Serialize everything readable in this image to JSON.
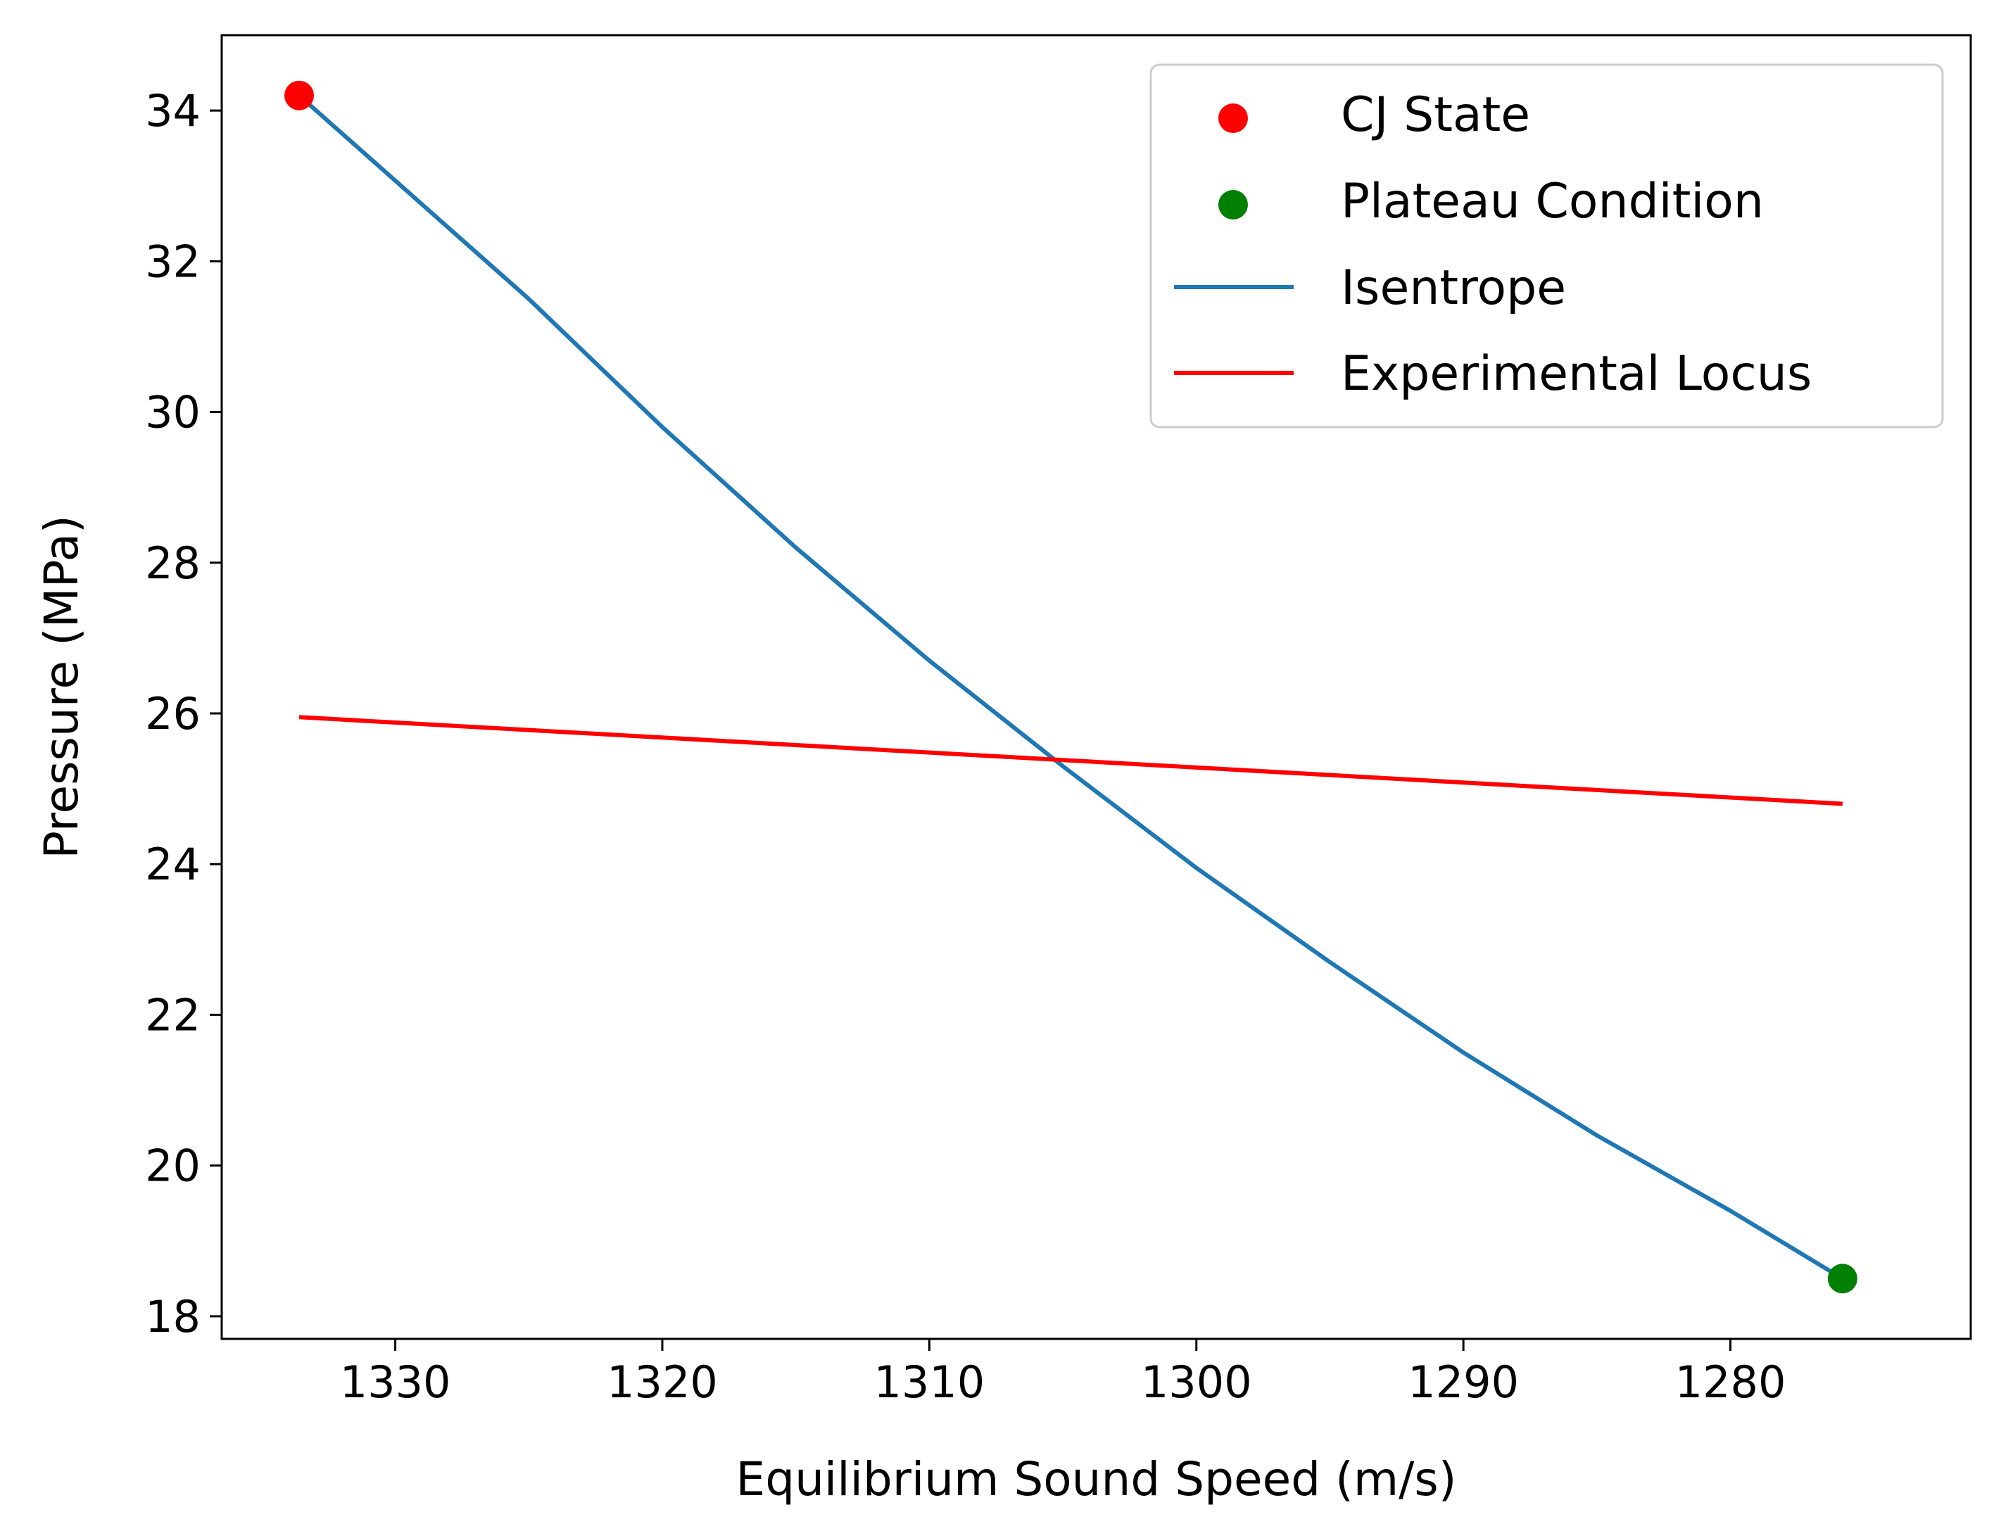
{
  "chart_data": {
    "type": "line",
    "xlabel": "Equilibrium Sound Speed (m/s)",
    "ylabel": "Pressure (MPa)",
    "x_inverted": true,
    "xlim": [
      1336.5,
      1271.0
    ],
    "ylim": [
      17.7,
      35.0
    ],
    "x_ticks": [
      1330,
      1320,
      1310,
      1300,
      1290,
      1280
    ],
    "y_ticks": [
      18,
      20,
      22,
      24,
      26,
      28,
      30,
      32,
      34
    ],
    "grid": false,
    "legend_position": "top-right",
    "colors": {
      "isentrope": "#1f77b4",
      "locus": "#ff0000",
      "cj": "#ff0000",
      "plateau": "#008000"
    },
    "series": [
      {
        "name": "CJ State",
        "kind": "scatter",
        "points": [
          {
            "x": 1333.6,
            "y": 34.2
          }
        ]
      },
      {
        "name": "Plateau Condition",
        "kind": "scatter",
        "points": [
          {
            "x": 1275.8,
            "y": 18.5
          }
        ]
      },
      {
        "name": "Isentrope",
        "kind": "line",
        "points": [
          {
            "x": 1333.6,
            "y": 34.2
          },
          {
            "x": 1325.0,
            "y": 31.5
          },
          {
            "x": 1320.0,
            "y": 29.8
          },
          {
            "x": 1315.0,
            "y": 28.2
          },
          {
            "x": 1310.0,
            "y": 26.7
          },
          {
            "x": 1305.0,
            "y": 25.3
          },
          {
            "x": 1300.0,
            "y": 23.95
          },
          {
            "x": 1295.0,
            "y": 22.7
          },
          {
            "x": 1290.0,
            "y": 21.5
          },
          {
            "x": 1285.0,
            "y": 20.4
          },
          {
            "x": 1280.0,
            "y": 19.4
          },
          {
            "x": 1275.8,
            "y": 18.5
          }
        ]
      },
      {
        "name": "Experimental Locus",
        "kind": "line",
        "points": [
          {
            "x": 1333.6,
            "y": 25.95
          },
          {
            "x": 1275.8,
            "y": 24.8
          }
        ]
      }
    ]
  }
}
